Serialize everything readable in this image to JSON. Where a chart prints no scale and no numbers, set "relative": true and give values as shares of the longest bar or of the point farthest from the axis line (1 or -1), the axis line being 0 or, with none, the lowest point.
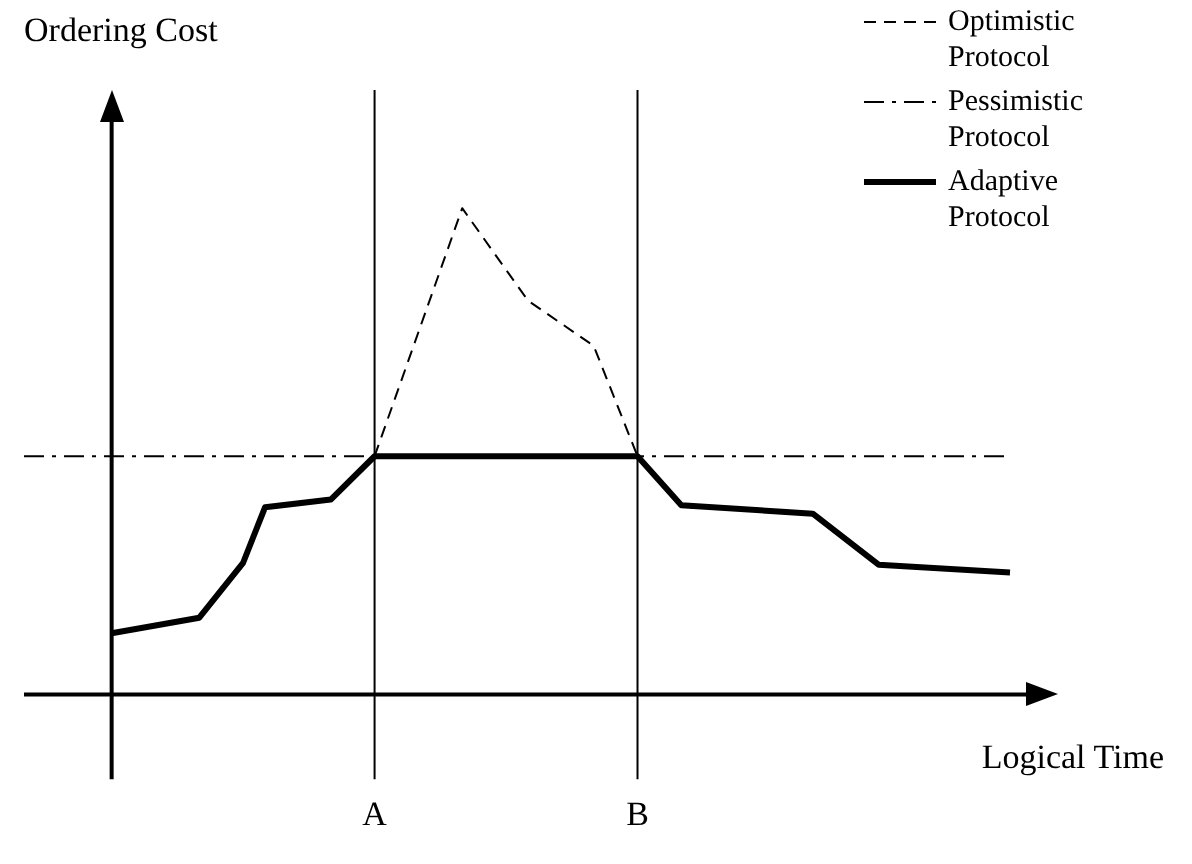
{
  "chart_data": {
    "type": "line",
    "relative": true,
    "xlabel": "Logical Time",
    "ylabel": "Ordering Cost",
    "tick_labels": "x",
    "legend": "top right",
    "marker": "none",
    "categories": [
      null,
      null,
      null,
      null,
      null,
      null,
      null,
      null,
      null,
      null,
      null,
      null,
      null,
      null,
      null,
      null,
      "A",
      null,
      null,
      null,
      null,
      null,
      null,
      null,
      null,
      null,
      null,
      null,
      "B",
      null,
      null,
      null,
      null,
      null,
      null,
      null,
      null,
      null,
      null,
      null,
      null,
      null,
      null,
      null,
      null,
      null
    ],
    "series": [
      {
        "name": "Optimistic Protocol",
        "color": "#000000",
        "line_style": "dashed",
        "values": [
          null,
          null,
          null,
          null,
          null,
          null,
          null,
          null,
          null,
          null,
          null,
          null,
          null,
          null,
          null,
          null,
          0.49,
          null,
          null,
          null,
          1,
          null,
          null,
          0.81,
          null,
          null,
          0.717,
          null,
          0.49,
          null,
          null,
          null,
          null,
          null,
          null,
          null,
          null,
          null,
          null,
          null,
          null,
          null,
          null,
          null,
          null,
          null
        ]
      },
      {
        "name": "Pessimistic Protocol",
        "color": "#000000",
        "line_style": "dashdot",
        "values": [
          0.49,
          null,
          null,
          null,
          null,
          null,
          null,
          null,
          null,
          null,
          null,
          null,
          null,
          null,
          null,
          null,
          null,
          null,
          null,
          null,
          null,
          null,
          null,
          null,
          null,
          null,
          null,
          null,
          null,
          null,
          null,
          null,
          null,
          null,
          null,
          null,
          null,
          null,
          null,
          null,
          null,
          null,
          null,
          null,
          null,
          0.49
        ]
      },
      {
        "name": "Adaptive Protocol",
        "color": "#000000",
        "line_style": "solid",
        "values": [
          null,
          null,
          null,
          null,
          0.126,
          null,
          null,
          null,
          0.158,
          null,
          0.271,
          0.385,
          null,
          null,
          0.401,
          null,
          0.49,
          null,
          null,
          null,
          null,
          null,
          null,
          null,
          null,
          null,
          null,
          null,
          0.49,
          null,
          0.389,
          null,
          null,
          null,
          null,
          null,
          0.372,
          null,
          null,
          0.267,
          null,
          null,
          null,
          null,
          null,
          0.251
        ]
      }
    ],
    "ref_lines": [
      {
        "axis": "x",
        "value": "A",
        "color": "#000000"
      },
      {
        "axis": "x",
        "value": "B",
        "color": "#000000"
      }
    ]
  }
}
